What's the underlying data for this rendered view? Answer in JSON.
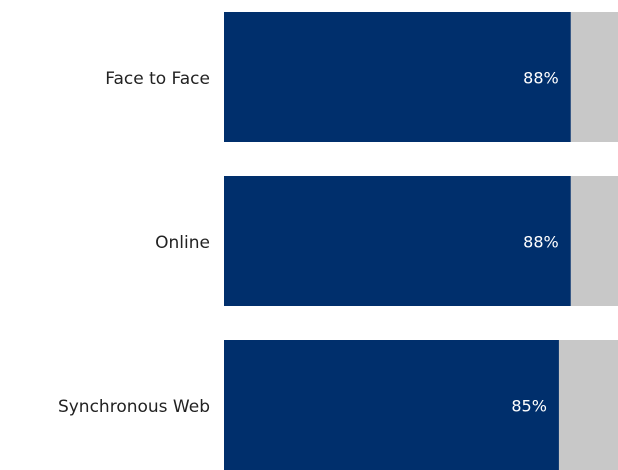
{
  "chart_data": {
    "type": "hbar",
    "categories": [
      "Face to Face",
      "Online",
      "Synchronous Web"
    ],
    "values": [
      88,
      88,
      85
    ],
    "value_labels": [
      "88%",
      "88%",
      "85%"
    ],
    "color": "#002f6c",
    "track_color": "#c8c8c8",
    "xlim": [
      0,
      100
    ]
  }
}
